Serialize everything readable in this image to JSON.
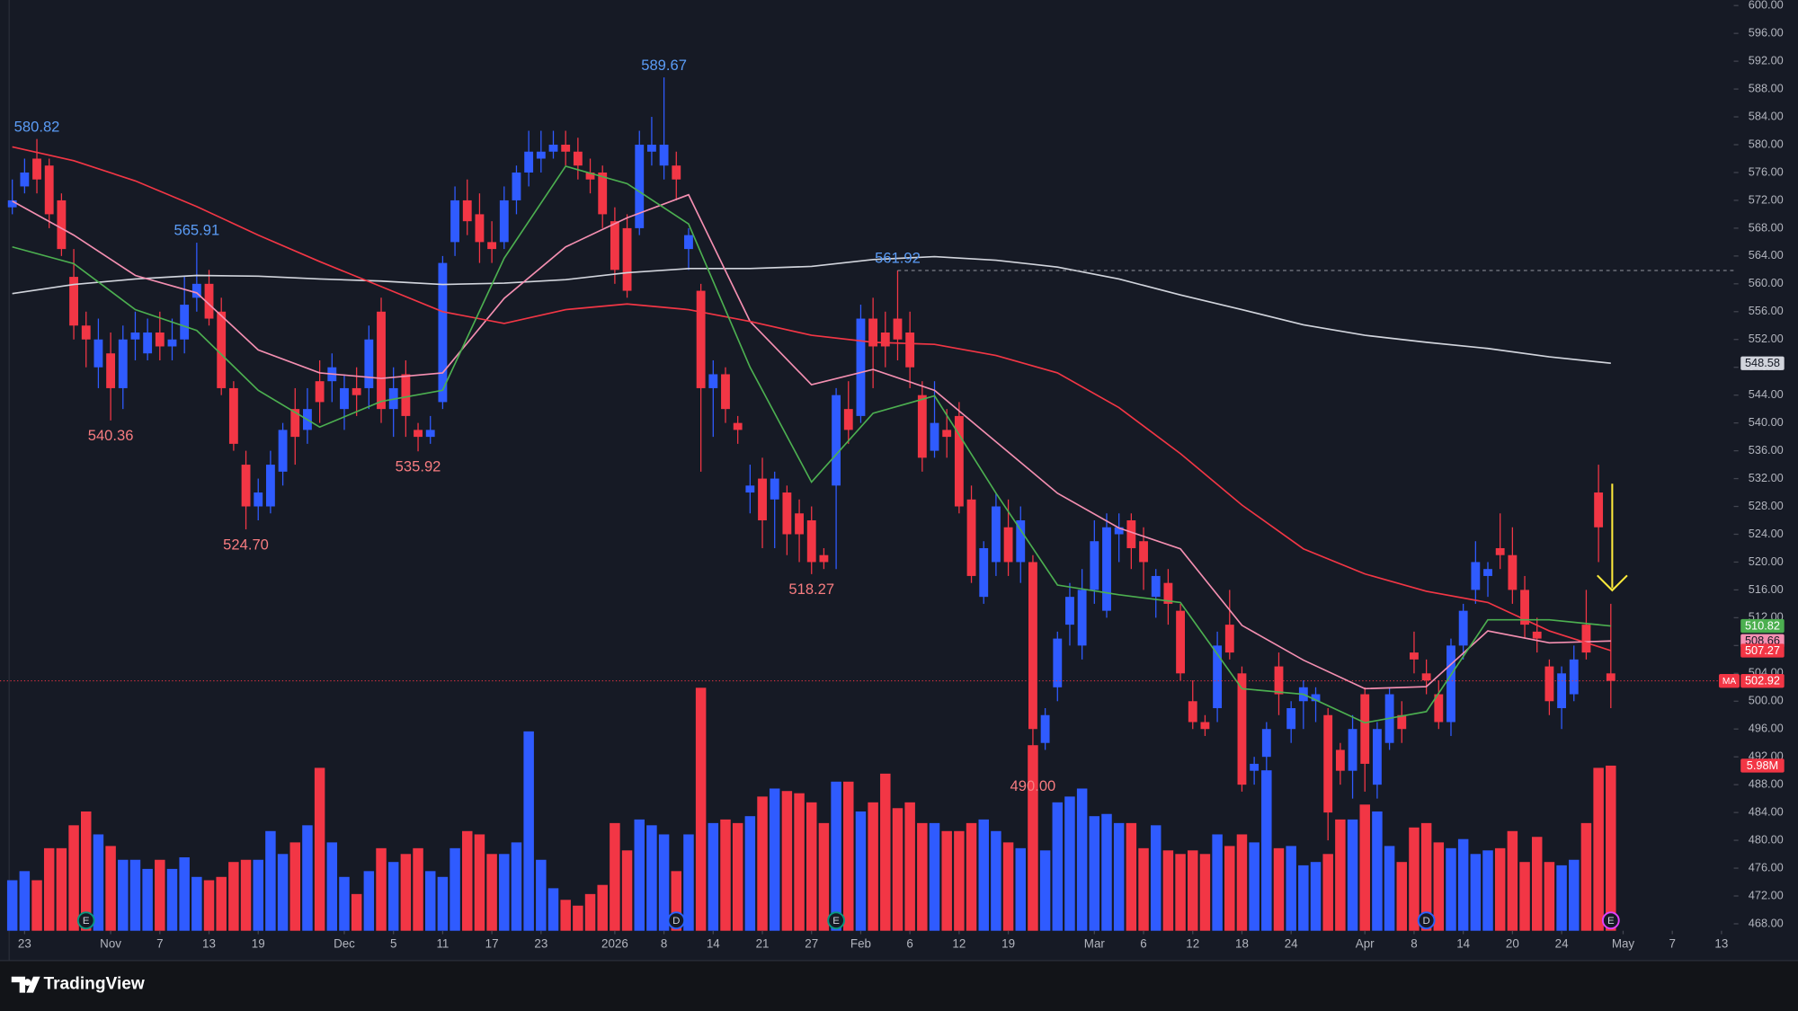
{
  "chart_data": {
    "type": "candlestick",
    "xlim": [
      -1,
      140
    ],
    "ylim": [
      467,
      600.8
    ],
    "up_color": "#2f5bff",
    "down_color": "#f23645",
    "candles": [
      [
        571,
        575,
        570,
        572
      ],
      [
        574,
        578,
        573,
        576
      ],
      [
        578,
        580.82,
        573,
        575
      ],
      [
        577,
        578,
        568,
        570
      ],
      [
        572,
        573,
        564,
        565
      ],
      [
        561,
        565,
        552,
        554
      ],
      [
        554,
        556,
        548,
        552
      ],
      [
        548,
        555,
        545,
        552
      ],
      [
        550,
        553,
        540.36,
        545
      ],
      [
        545,
        554,
        542,
        552
      ],
      [
        552,
        556,
        549,
        553
      ],
      [
        550,
        555,
        549,
        553
      ],
      [
        553,
        556,
        549,
        551
      ],
      [
        551,
        555,
        549,
        552
      ],
      [
        552,
        561,
        550,
        557
      ],
      [
        558,
        565.91,
        556,
        560
      ],
      [
        560,
        562,
        554,
        555
      ],
      [
        556,
        558,
        544,
        545
      ],
      [
        545,
        546,
        536,
        537
      ],
      [
        534,
        536,
        524.7,
        528
      ],
      [
        528,
        532,
        526,
        530
      ],
      [
        528,
        536,
        527,
        534
      ],
      [
        533,
        540,
        531,
        539
      ],
      [
        542,
        545,
        534,
        538
      ],
      [
        539,
        545,
        537,
        542
      ],
      [
        546,
        549,
        540,
        543
      ],
      [
        546,
        550,
        543,
        548
      ],
      [
        542,
        547,
        539,
        545
      ],
      [
        545,
        548,
        541,
        544
      ],
      [
        545,
        554,
        542,
        552
      ],
      [
        556,
        558,
        540,
        542
      ],
      [
        542,
        548,
        538,
        545
      ],
      [
        547,
        549,
        538,
        541
      ],
      [
        539,
        540,
        535.92,
        538
      ],
      [
        538,
        541,
        537,
        539
      ],
      [
        543,
        564,
        542,
        563
      ],
      [
        566,
        574,
        564,
        572
      ],
      [
        572,
        575,
        567,
        569
      ],
      [
        570,
        573,
        563,
        566
      ],
      [
        566,
        569,
        563,
        565
      ],
      [
        566,
        574,
        565,
        572
      ],
      [
        572,
        577,
        570,
        576
      ],
      [
        576,
        582,
        574,
        579
      ],
      [
        578,
        582,
        576,
        579
      ],
      [
        579,
        582,
        578,
        580
      ],
      [
        580,
        582,
        577,
        579
      ],
      [
        579,
        581,
        575,
        577
      ],
      [
        576,
        578,
        573,
        575
      ],
      [
        576,
        577,
        568,
        570
      ],
      [
        569,
        571,
        560,
        562
      ],
      [
        568,
        570,
        558,
        559
      ],
      [
        568,
        582,
        567,
        580
      ],
      [
        579,
        584,
        577,
        580
      ],
      [
        577,
        589.67,
        575,
        580
      ],
      [
        577,
        579,
        572,
        575
      ],
      [
        565,
        568,
        562,
        567
      ],
      [
        559,
        560,
        533,
        545
      ],
      [
        545,
        549,
        538,
        547
      ],
      [
        547,
        548,
        540,
        542
      ],
      [
        540,
        541,
        537,
        539
      ],
      [
        530,
        534,
        527,
        531
      ],
      [
        532,
        535,
        522,
        526
      ],
      [
        529,
        533,
        522,
        532
      ],
      [
        530,
        531,
        521,
        524
      ],
      [
        527,
        529,
        520,
        524
      ],
      [
        526,
        528,
        518.27,
        520
      ],
      [
        521,
        522,
        519,
        520
      ],
      [
        531,
        545,
        519,
        544
      ],
      [
        542,
        546,
        537,
        539
      ],
      [
        541,
        557,
        540,
        555
      ],
      [
        555,
        558,
        545,
        551
      ],
      [
        553,
        556,
        548,
        551
      ],
      [
        555,
        561.92,
        549,
        552
      ],
      [
        553,
        556,
        545,
        548
      ],
      [
        544,
        546,
        533,
        535
      ],
      [
        536,
        546,
        535,
        540
      ],
      [
        539,
        542,
        535,
        538
      ],
      [
        541,
        543,
        527,
        528
      ],
      [
        529,
        531,
        517,
        518
      ],
      [
        515,
        523,
        514,
        522
      ],
      [
        520,
        530,
        518,
        528
      ],
      [
        525,
        529,
        518,
        520
      ],
      [
        520,
        528,
        517,
        526
      ],
      [
        520,
        521,
        490,
        496
      ],
      [
        494,
        499,
        493,
        498
      ],
      [
        502,
        510,
        500,
        509
      ],
      [
        511,
        517,
        508,
        515
      ],
      [
        508,
        519,
        506,
        516
      ],
      [
        516,
        526,
        514,
        523
      ],
      [
        513,
        527,
        512,
        525
      ],
      [
        524,
        527,
        520,
        525
      ],
      [
        526,
        527,
        519,
        522
      ],
      [
        523,
        525,
        516,
        520
      ],
      [
        515,
        519,
        512,
        518
      ],
      [
        517,
        519,
        511,
        514
      ],
      [
        513,
        514,
        503,
        504
      ],
      [
        500,
        503,
        496,
        497
      ],
      [
        497,
        498,
        495,
        496
      ],
      [
        499,
        510,
        497,
        508
      ],
      [
        511,
        516,
        506,
        507
      ],
      [
        504,
        505,
        487,
        488
      ],
      [
        490,
        492,
        488,
        491
      ],
      [
        492,
        497,
        489,
        496
      ],
      [
        505,
        507,
        498,
        501
      ],
      [
        496,
        500,
        494,
        499
      ],
      [
        500,
        503,
        496,
        502
      ],
      [
        500,
        502,
        497,
        501
      ],
      [
        498,
        499,
        480,
        484
      ],
      [
        493,
        494,
        488,
        490
      ],
      [
        490,
        498,
        486,
        496
      ],
      [
        501,
        502,
        487,
        491
      ],
      [
        488,
        497,
        486,
        496
      ],
      [
        494,
        502,
        493,
        501
      ],
      [
        498,
        500,
        494,
        496
      ],
      [
        507,
        510,
        504,
        506
      ],
      [
        504,
        506,
        501,
        503
      ],
      [
        501,
        503,
        496,
        497
      ],
      [
        497,
        509,
        495,
        508
      ],
      [
        508,
        514,
        506,
        513
      ],
      [
        516,
        523,
        514,
        520
      ],
      [
        518,
        520,
        515,
        519
      ],
      [
        522,
        527,
        519,
        521
      ],
      [
        521,
        525,
        514,
        516
      ],
      [
        516,
        518,
        509,
        511
      ],
      [
        510,
        512,
        507,
        509
      ],
      [
        505,
        506,
        498,
        500
      ],
      [
        499,
        505,
        496,
        504
      ],
      [
        501,
        508,
        500,
        506
      ],
      [
        511,
        516,
        506,
        507
      ],
      [
        530,
        534,
        520,
        525
      ],
      [
        504,
        514,
        499,
        502.92
      ]
    ],
    "volumes": [
      1.83,
      2.16,
      1.83,
      2.99,
      2.99,
      3.82,
      4.32,
      3.49,
      3.07,
      2.57,
      2.57,
      2.24,
      2.57,
      2.24,
      2.66,
      1.95,
      1.83,
      1.95,
      2.49,
      2.57,
      2.57,
      3.61,
      2.78,
      3.2,
      3.82,
      5.9,
      3.2,
      1.95,
      1.33,
      2.16,
      2.99,
      2.49,
      2.78,
      2.99,
      2.16,
      1.95,
      2.99,
      3.61,
      3.49,
      2.78,
      2.78,
      3.2,
      7.22,
      2.57,
      1.54,
      1.12,
      0.91,
      1.33,
      1.66,
      3.9,
      2.91,
      4.03,
      3.82,
      3.49,
      2.16,
      3.49,
      8.8,
      3.9,
      4.03,
      3.9,
      4.15,
      4.86,
      5.15,
      5.06,
      4.98,
      4.65,
      3.9,
      5.4,
      5.4,
      4.32,
      4.65,
      5.69,
      4.44,
      4.65,
      3.9,
      3.9,
      3.61,
      3.61,
      3.9,
      4.03,
      3.61,
      3.2,
      2.99,
      6.72,
      2.91,
      4.65,
      4.86,
      5.15,
      4.15,
      4.23,
      3.9,
      3.9,
      2.99,
      3.82,
      2.91,
      2.78,
      2.91,
      2.78,
      3.49,
      3.07,
      3.49,
      3.2,
      5.81,
      2.99,
      3.07,
      2.37,
      2.49,
      2.78,
      4.03,
      4.03,
      4.57,
      4.32,
      3.07,
      2.49,
      3.74,
      3.9,
      3.2,
      2.99,
      3.32,
      2.78,
      2.91,
      2.99,
      3.61,
      2.49,
      3.4,
      2.49,
      2.37,
      2.57,
      3.9,
      5.9,
      5.98
    ],
    "last_volume_label": "5.98M",
    "ma_x": [
      0,
      5,
      10,
      15,
      20,
      25,
      30,
      35,
      40,
      45,
      50,
      55,
      60,
      65,
      70,
      75,
      80,
      85,
      90,
      95,
      100,
      105,
      110,
      115,
      120,
      125,
      130
    ],
    "moving_averages": [
      {
        "color": "#d1d4dc",
        "label_text": "#131722",
        "values": [
          558.6,
          559.9,
          560.7,
          561.2,
          561.1,
          560.7,
          560.4,
          559.9,
          560.1,
          560.6,
          561.6,
          562.2,
          562.2,
          562.5,
          563.5,
          563.9,
          563.4,
          562.4,
          560.7,
          558.4,
          556.3,
          554.1,
          552.6,
          551.6,
          550.7,
          549.5,
          548.58
        ]
      },
      {
        "color": "#f48fb1",
        "label_text": "#131722",
        "values": [
          571.9,
          567.0,
          561.2,
          558.7,
          550.5,
          547.2,
          546.4,
          547.2,
          557.9,
          565.3,
          569.5,
          572.8,
          554.6,
          545.5,
          547.7,
          544.7,
          537.3,
          529.9,
          524.9,
          521.9,
          510.9,
          505.9,
          501.8,
          502.1,
          510.1,
          508.4,
          508.66
        ]
      },
      {
        "color": "#f23645",
        "label_text": "#ffffff",
        "values": [
          579.7,
          577.7,
          574.8,
          571.1,
          567.0,
          563.2,
          559.6,
          556.0,
          554.3,
          556.3,
          557.1,
          556.3,
          554.6,
          552.6,
          551.6,
          551.3,
          549.7,
          547.2,
          542.2,
          535.6,
          528.2,
          521.9,
          518.3,
          515.8,
          514.2,
          510.1,
          507.27
        ]
      },
      {
        "color": "#4caf50",
        "label_text": "#ffffff",
        "values": [
          565.3,
          562.9,
          556.3,
          553.3,
          544.7,
          539.4,
          543.1,
          544.7,
          563.7,
          576.9,
          574.4,
          568.6,
          548.0,
          531.5,
          541.4,
          543.9,
          529.9,
          516.7,
          515.3,
          514.2,
          501.8,
          501.0,
          496.9,
          498.5,
          511.7,
          511.7,
          510.82
        ]
      }
    ],
    "price_tag": "MA",
    "extremes": [
      {
        "at": 2,
        "value": 580.82,
        "label": "580.82"
      },
      {
        "at": 15,
        "value": 565.91,
        "label": "565.91"
      },
      {
        "at": 8,
        "value": 540.36,
        "label": "540.36"
      },
      {
        "at": 19,
        "value": 524.7,
        "label": "524.70"
      },
      {
        "at": 33,
        "value": 535.92,
        "label": "535.92"
      },
      {
        "at": 53,
        "value": 589.67,
        "label": "589.67"
      },
      {
        "at": 65,
        "value": 518.27,
        "label": "518.27"
      },
      {
        "at": 72,
        "value": 561.92,
        "label": "561.92",
        "line": true
      },
      {
        "at": 83,
        "value": 490,
        "label": "490.00"
      }
    ],
    "events": [
      {
        "at": 6,
        "label": "E",
        "color": "#089981"
      },
      {
        "at": 54,
        "label": "D",
        "color": "#2962ff"
      },
      {
        "at": 67,
        "label": "E",
        "color": "#089981"
      },
      {
        "at": 115,
        "label": "D",
        "color": "#2962ff"
      },
      {
        "at": 130,
        "label": "E",
        "color": "#e040fb"
      }
    ],
    "yticks": [
      {
        "value": 600,
        "label": "600.00"
      },
      {
        "value": 596,
        "label": "596.00"
      },
      {
        "value": 592,
        "label": "592.00"
      },
      {
        "value": 588,
        "label": "588.00"
      },
      {
        "value": 584,
        "label": "584.00"
      },
      {
        "value": 580,
        "label": "580.00"
      },
      {
        "value": 576,
        "label": "576.00"
      },
      {
        "value": 572,
        "label": "572.00"
      },
      {
        "value": 568,
        "label": "568.00"
      },
      {
        "value": 564,
        "label": "564.00"
      },
      {
        "value": 560,
        "label": "560.00"
      },
      {
        "value": 556,
        "label": "556.00"
      },
      {
        "value": 552,
        "label": "552.00"
      },
      {
        "value": 548,
        "label": "548.00"
      },
      {
        "value": 544,
        "label": "544.00"
      },
      {
        "value": 540,
        "label": "540.00"
      },
      {
        "value": 536,
        "label": "536.00"
      },
      {
        "value": 532,
        "label": "532.00"
      },
      {
        "value": 528,
        "label": "528.00"
      },
      {
        "value": 524,
        "label": "524.00"
      },
      {
        "value": 520,
        "label": "520.00"
      },
      {
        "value": 516,
        "label": "516.00"
      },
      {
        "value": 512,
        "label": "512.00"
      },
      {
        "value": 508,
        "label": "508.00"
      },
      {
        "value": 504,
        "label": "504.00"
      },
      {
        "value": 500,
        "label": "500.00"
      },
      {
        "value": 496,
        "label": "496.00"
      },
      {
        "value": 492,
        "label": "492.00"
      },
      {
        "value": 488,
        "label": "488.00"
      },
      {
        "value": 484,
        "label": "484.00"
      },
      {
        "value": 480,
        "label": "480.00"
      },
      {
        "value": 476,
        "label": "476.00"
      },
      {
        "value": 472,
        "label": "472.00"
      },
      {
        "value": 468,
        "label": "468.00"
      }
    ],
    "xticks": [
      {
        "value": 1,
        "label": "23"
      },
      {
        "value": 8,
        "label": "Nov"
      },
      {
        "value": 12,
        "label": "7"
      },
      {
        "value": 16,
        "label": "13"
      },
      {
        "value": 20,
        "label": "19"
      },
      {
        "value": 27,
        "label": "Dec"
      },
      {
        "value": 31,
        "label": "5"
      },
      {
        "value": 35,
        "label": "11"
      },
      {
        "value": 39,
        "label": "17"
      },
      {
        "value": 43,
        "label": "23"
      },
      {
        "value": 49,
        "label": "2026"
      },
      {
        "value": 53,
        "label": "8"
      },
      {
        "value": 57,
        "label": "14"
      },
      {
        "value": 61,
        "label": "21"
      },
      {
        "value": 65,
        "label": "27"
      },
      {
        "value": 69,
        "label": "Feb"
      },
      {
        "value": 73,
        "label": "6"
      },
      {
        "value": 77,
        "label": "12"
      },
      {
        "value": 81,
        "label": "19"
      },
      {
        "value": 88,
        "label": "Mar"
      },
      {
        "value": 92,
        "label": "6"
      },
      {
        "value": 96,
        "label": "12"
      },
      {
        "value": 100,
        "label": "18"
      },
      {
        "value": 104,
        "label": "24"
      },
      {
        "value": 110,
        "label": "Apr"
      },
      {
        "value": 114,
        "label": "8"
      },
      {
        "value": 118,
        "label": "14"
      },
      {
        "value": 122,
        "label": "20"
      },
      {
        "value": 126,
        "label": "24"
      },
      {
        "value": 131,
        "label": "May"
      },
      {
        "value": 135,
        "label": "7"
      },
      {
        "value": 139,
        "label": "13"
      }
    ]
  },
  "footer": {
    "brand": "TradingView"
  }
}
